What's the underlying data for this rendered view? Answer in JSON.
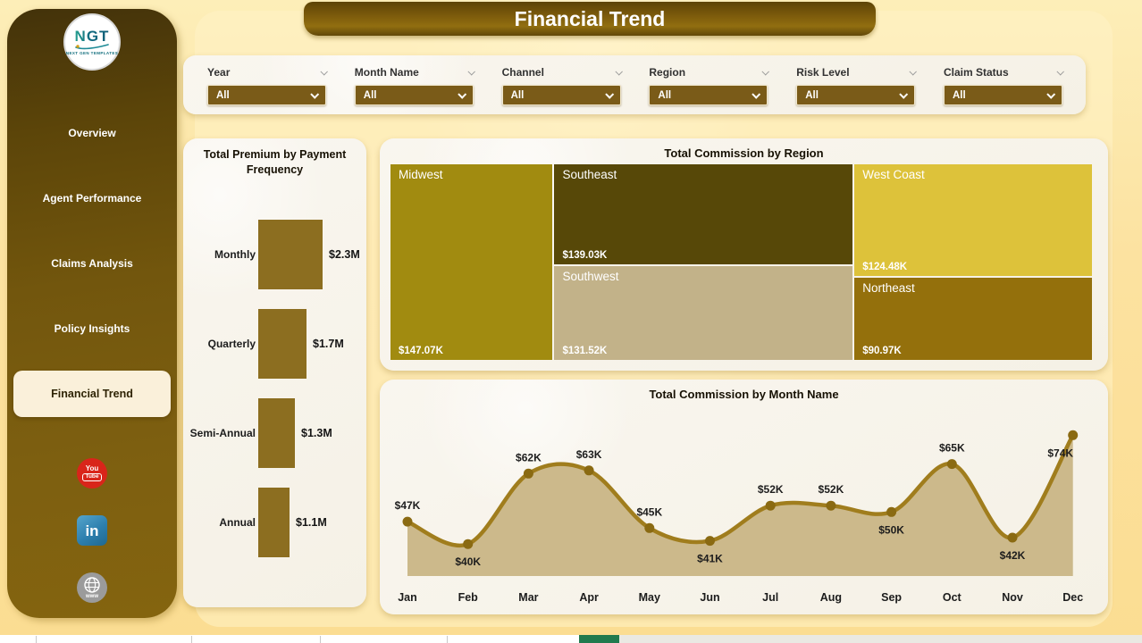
{
  "title_banner": {
    "label": "Financial Trend"
  },
  "logo": {
    "acronym": "NGT",
    "tagline": "NEXT GEN TEMPLATES"
  },
  "sidebar": {
    "items": [
      {
        "label": "Overview",
        "selected": false
      },
      {
        "label": "Agent Performance",
        "selected": false
      },
      {
        "label": "Claims Analysis",
        "selected": false
      },
      {
        "label": "Policy Insights",
        "selected": false
      },
      {
        "label": "Financial Trend",
        "selected": true
      }
    ],
    "social": [
      {
        "name": "youtube",
        "line1": "You",
        "line2": "Tube"
      },
      {
        "name": "linkedin",
        "label": "in"
      },
      {
        "name": "website",
        "label": "www"
      }
    ]
  },
  "filters": {
    "items": [
      {
        "label": "Year",
        "value": "All"
      },
      {
        "label": "Month Name",
        "value": "All"
      },
      {
        "label": "Channel",
        "value": "All"
      },
      {
        "label": "Region",
        "value": "All"
      },
      {
        "label": "Risk Level",
        "value": "All"
      },
      {
        "label": "Claim Status",
        "value": "All"
      }
    ]
  },
  "colors": {
    "accent_brown": "#7a5b18",
    "bar": "#8c6e20",
    "line": "#a07d1d",
    "point": "#8a6a12",
    "area_fill": "#ccb98b",
    "active_page_tab_green": "#217a4e"
  },
  "chart_data": [
    {
      "type": "bar",
      "title": "Total Premium by Payment Frequency",
      "orientation": "horizontal",
      "categories": [
        "Monthly",
        "Quarterly",
        "Semi-Annual",
        "Annual"
      ],
      "values": [
        2.3,
        1.7,
        1.3,
        1.1
      ],
      "labels": [
        "$2.3M",
        "$1.7M",
        "$1.3M",
        "$1.1M"
      ],
      "xlabel": "",
      "ylabel": "",
      "unit": "USD millions",
      "bar_color": "#8c6e20",
      "grid": false
    },
    {
      "type": "treemap",
      "title": "Total Commission by Region",
      "items": [
        {
          "name": "Midwest",
          "value": 147.07,
          "label": "$147.07K",
          "color": "#a18b10"
        },
        {
          "name": "Southeast",
          "value": 139.03,
          "label": "$139.03K",
          "color": "#574808"
        },
        {
          "name": "Southwest",
          "value": 131.52,
          "label": "$131.52K",
          "color": "#c2b289"
        },
        {
          "name": "West Coast",
          "value": 124.48,
          "label": "$124.48K",
          "color": "#ddc23a"
        },
        {
          "name": "Northeast",
          "value": 90.97,
          "label": "$90.97K",
          "color": "#94700c"
        }
      ],
      "layout": {
        "columns": [
          [
            0
          ],
          [
            1,
            2
          ],
          [
            3,
            4
          ]
        ]
      }
    },
    {
      "type": "area",
      "title": "Total Commission by Month Name",
      "categories": [
        "Jan",
        "Feb",
        "Mar",
        "Apr",
        "May",
        "Jun",
        "Jul",
        "Aug",
        "Sep",
        "Oct",
        "Nov",
        "Dec"
      ],
      "values": [
        47,
        40,
        62,
        63,
        45,
        41,
        52,
        52,
        50,
        65,
        42,
        74
      ],
      "labels": [
        "$47K",
        "$40K",
        "$62K",
        "$63K",
        "$45K",
        "$41K",
        "$52K",
        "$52K",
        "$50K",
        "$65K",
        "$42K",
        "$74K"
      ],
      "label_positions": [
        "above",
        "below",
        "above",
        "above",
        "above",
        "below",
        "above",
        "above",
        "below",
        "above",
        "below",
        "below"
      ],
      "xlabel": "",
      "ylabel": "",
      "unit": "USD thousands",
      "ylim": [
        30,
        78
      ],
      "grid": false,
      "legend": "none",
      "line_color": "#a07d1d",
      "area_color": "#ccb98b",
      "point_color": "#8a6a12"
    }
  ]
}
